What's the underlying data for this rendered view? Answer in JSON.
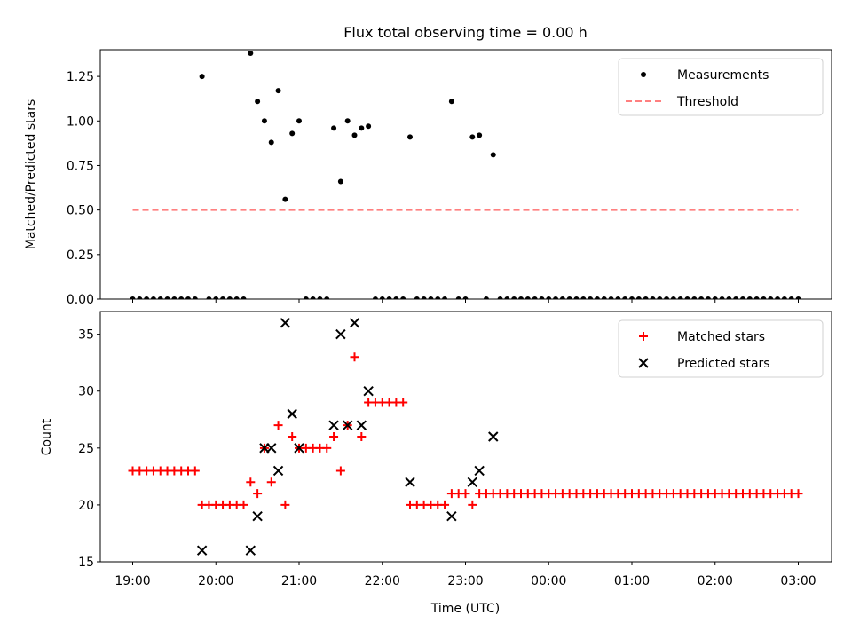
{
  "chart_data": [
    {
      "type": "scatter",
      "title": "Flux total observing time = 0.00 h",
      "ylabel": "Matched/Predicted stars",
      "xlabel": "",
      "ylim": [
        0,
        1.4
      ],
      "yticks": [
        0.0,
        0.25,
        0.5,
        0.75,
        1.0,
        1.25
      ],
      "ytick_labels": [
        "0.00",
        "0.25",
        "0.50",
        "0.75",
        "1.00",
        "1.25"
      ],
      "legend_position": "top-right",
      "series": [
        {
          "name": "Measurements",
          "color": "#000000",
          "marker": "dot",
          "points": [
            [
              "19:00",
              0
            ],
            [
              "19:05",
              0
            ],
            [
              "19:10",
              0
            ],
            [
              "19:15",
              0
            ],
            [
              "19:20",
              0
            ],
            [
              "19:25",
              0
            ],
            [
              "19:30",
              0
            ],
            [
              "19:35",
              0
            ],
            [
              "19:40",
              0
            ],
            [
              "19:45",
              0
            ],
            [
              "19:50",
              1.25
            ],
            [
              "19:55",
              0
            ],
            [
              "20:00",
              0
            ],
            [
              "20:05",
              0
            ],
            [
              "20:10",
              0
            ],
            [
              "20:15",
              0
            ],
            [
              "20:20",
              0
            ],
            [
              "20:25",
              1.38
            ],
            [
              "20:30",
              1.11
            ],
            [
              "20:35",
              1.0
            ],
            [
              "20:40",
              0.88
            ],
            [
              "20:45",
              1.17
            ],
            [
              "20:50",
              0.56
            ],
            [
              "20:55",
              0.93
            ],
            [
              "21:00",
              1.0
            ],
            [
              "21:05",
              0
            ],
            [
              "21:10",
              0
            ],
            [
              "21:15",
              0
            ],
            [
              "21:20",
              0
            ],
            [
              "21:25",
              0.96
            ],
            [
              "21:30",
              0.66
            ],
            [
              "21:35",
              1.0
            ],
            [
              "21:40",
              0.92
            ],
            [
              "21:45",
              0.96
            ],
            [
              "21:50",
              0.97
            ],
            [
              "21:55",
              0
            ],
            [
              "22:00",
              0
            ],
            [
              "22:05",
              0
            ],
            [
              "22:10",
              0
            ],
            [
              "22:15",
              0
            ],
            [
              "22:20",
              0.91
            ],
            [
              "22:25",
              0
            ],
            [
              "22:30",
              0
            ],
            [
              "22:35",
              0
            ],
            [
              "22:40",
              0
            ],
            [
              "22:45",
              0
            ],
            [
              "22:50",
              1.11
            ],
            [
              "22:55",
              0
            ],
            [
              "23:00",
              0
            ],
            [
              "23:05",
              0.91
            ],
            [
              "23:10",
              0.92
            ],
            [
              "23:15",
              0
            ],
            [
              "23:20",
              0.81
            ],
            [
              "23:25",
              0
            ],
            [
              "23:30",
              0
            ],
            [
              "23:35",
              0
            ],
            [
              "23:40",
              0
            ],
            [
              "23:45",
              0
            ],
            [
              "23:50",
              0
            ],
            [
              "23:55",
              0
            ],
            [
              "00:00",
              0
            ],
            [
              "00:05",
              0
            ],
            [
              "00:10",
              0
            ],
            [
              "00:15",
              0
            ],
            [
              "00:20",
              0
            ],
            [
              "00:25",
              0
            ],
            [
              "00:30",
              0
            ],
            [
              "00:35",
              0
            ],
            [
              "00:40",
              0
            ],
            [
              "00:45",
              0
            ],
            [
              "00:50",
              0
            ],
            [
              "00:55",
              0
            ],
            [
              "01:00",
              0
            ],
            [
              "01:05",
              0
            ],
            [
              "01:10",
              0
            ],
            [
              "01:15",
              0
            ],
            [
              "01:20",
              0
            ],
            [
              "01:25",
              0
            ],
            [
              "01:30",
              0
            ],
            [
              "01:35",
              0
            ],
            [
              "01:40",
              0
            ],
            [
              "01:45",
              0
            ],
            [
              "01:50",
              0
            ],
            [
              "01:55",
              0
            ],
            [
              "02:00",
              0
            ],
            [
              "02:05",
              0
            ],
            [
              "02:10",
              0
            ],
            [
              "02:15",
              0
            ],
            [
              "02:20",
              0
            ],
            [
              "02:25",
              0
            ],
            [
              "02:30",
              0
            ],
            [
              "02:35",
              0
            ],
            [
              "02:40",
              0
            ],
            [
              "02:45",
              0
            ],
            [
              "02:50",
              0
            ],
            [
              "02:55",
              0
            ],
            [
              "03:00",
              0
            ]
          ]
        },
        {
          "name": "Threshold",
          "color": "#ff7f7f",
          "marker": "dashed-line",
          "points": [
            [
              "19:00",
              0.5
            ],
            [
              "03:00",
              0.5
            ]
          ]
        }
      ]
    },
    {
      "type": "scatter",
      "title": "",
      "ylabel": "Count",
      "xlabel": "Time (UTC)",
      "ylim": [
        15,
        37
      ],
      "yticks": [
        15,
        20,
        25,
        30,
        35
      ],
      "ytick_labels": [
        "15",
        "20",
        "25",
        "30",
        "35"
      ],
      "xtick_labels": [
        "19:00",
        "20:00",
        "21:00",
        "22:00",
        "23:00",
        "00:00",
        "01:00",
        "02:00",
        "03:00"
      ],
      "legend_position": "top-right",
      "series": [
        {
          "name": "Matched stars",
          "color": "#ff0000",
          "marker": "plus",
          "points": [
            [
              "19:00",
              23
            ],
            [
              "19:05",
              23
            ],
            [
              "19:10",
              23
            ],
            [
              "19:15",
              23
            ],
            [
              "19:20",
              23
            ],
            [
              "19:25",
              23
            ],
            [
              "19:30",
              23
            ],
            [
              "19:35",
              23
            ],
            [
              "19:40",
              23
            ],
            [
              "19:45",
              23
            ],
            [
              "19:50",
              20
            ],
            [
              "19:55",
              20
            ],
            [
              "20:00",
              20
            ],
            [
              "20:05",
              20
            ],
            [
              "20:10",
              20
            ],
            [
              "20:15",
              20
            ],
            [
              "20:20",
              20
            ],
            [
              "20:25",
              22
            ],
            [
              "20:30",
              21
            ],
            [
              "20:35",
              25
            ],
            [
              "20:40",
              22
            ],
            [
              "20:45",
              27
            ],
            [
              "20:50",
              20
            ],
            [
              "20:55",
              26
            ],
            [
              "21:00",
              25
            ],
            [
              "21:05",
              25
            ],
            [
              "21:10",
              25
            ],
            [
              "21:15",
              25
            ],
            [
              "21:20",
              25
            ],
            [
              "21:25",
              26
            ],
            [
              "21:30",
              23
            ],
            [
              "21:35",
              27
            ],
            [
              "21:40",
              33
            ],
            [
              "21:45",
              26
            ],
            [
              "21:50",
              29
            ],
            [
              "21:55",
              29
            ],
            [
              "22:00",
              29
            ],
            [
              "22:05",
              29
            ],
            [
              "22:10",
              29
            ],
            [
              "22:15",
              29
            ],
            [
              "22:20",
              20
            ],
            [
              "22:25",
              20
            ],
            [
              "22:30",
              20
            ],
            [
              "22:35",
              20
            ],
            [
              "22:40",
              20
            ],
            [
              "22:45",
              20
            ],
            [
              "22:50",
              21
            ],
            [
              "22:55",
              21
            ],
            [
              "23:00",
              21
            ],
            [
              "23:05",
              20
            ],
            [
              "23:10",
              21
            ],
            [
              "23:15",
              21
            ],
            [
              "23:20",
              21
            ],
            [
              "23:25",
              21
            ],
            [
              "23:30",
              21
            ],
            [
              "23:35",
              21
            ],
            [
              "23:40",
              21
            ],
            [
              "23:45",
              21
            ],
            [
              "23:50",
              21
            ],
            [
              "23:55",
              21
            ],
            [
              "00:00",
              21
            ],
            [
              "00:05",
              21
            ],
            [
              "00:10",
              21
            ],
            [
              "00:15",
              21
            ],
            [
              "00:20",
              21
            ],
            [
              "00:25",
              21
            ],
            [
              "00:30",
              21
            ],
            [
              "00:35",
              21
            ],
            [
              "00:40",
              21
            ],
            [
              "00:45",
              21
            ],
            [
              "00:50",
              21
            ],
            [
              "00:55",
              21
            ],
            [
              "01:00",
              21
            ],
            [
              "01:05",
              21
            ],
            [
              "01:10",
              21
            ],
            [
              "01:15",
              21
            ],
            [
              "01:20",
              21
            ],
            [
              "01:25",
              21
            ],
            [
              "01:30",
              21
            ],
            [
              "01:35",
              21
            ],
            [
              "01:40",
              21
            ],
            [
              "01:45",
              21
            ],
            [
              "01:50",
              21
            ],
            [
              "01:55",
              21
            ],
            [
              "02:00",
              21
            ],
            [
              "02:05",
              21
            ],
            [
              "02:10",
              21
            ],
            [
              "02:15",
              21
            ],
            [
              "02:20",
              21
            ],
            [
              "02:25",
              21
            ],
            [
              "02:30",
              21
            ],
            [
              "02:35",
              21
            ],
            [
              "02:40",
              21
            ],
            [
              "02:45",
              21
            ],
            [
              "02:50",
              21
            ],
            [
              "02:55",
              21
            ],
            [
              "03:00",
              21
            ]
          ]
        },
        {
          "name": "Predicted stars",
          "color": "#000000",
          "marker": "x",
          "points": [
            [
              "19:50",
              16
            ],
            [
              "20:25",
              16
            ],
            [
              "20:30",
              19
            ],
            [
              "20:35",
              25
            ],
            [
              "20:40",
              25
            ],
            [
              "20:45",
              23
            ],
            [
              "20:50",
              36
            ],
            [
              "20:55",
              28
            ],
            [
              "21:00",
              25
            ],
            [
              "21:25",
              27
            ],
            [
              "21:30",
              35
            ],
            [
              "21:35",
              27
            ],
            [
              "21:40",
              36
            ],
            [
              "21:45",
              27
            ],
            [
              "21:50",
              30
            ],
            [
              "22:20",
              22
            ],
            [
              "22:50",
              19
            ],
            [
              "23:05",
              22
            ],
            [
              "23:10",
              23
            ],
            [
              "23:20",
              26
            ]
          ]
        }
      ]
    }
  ]
}
